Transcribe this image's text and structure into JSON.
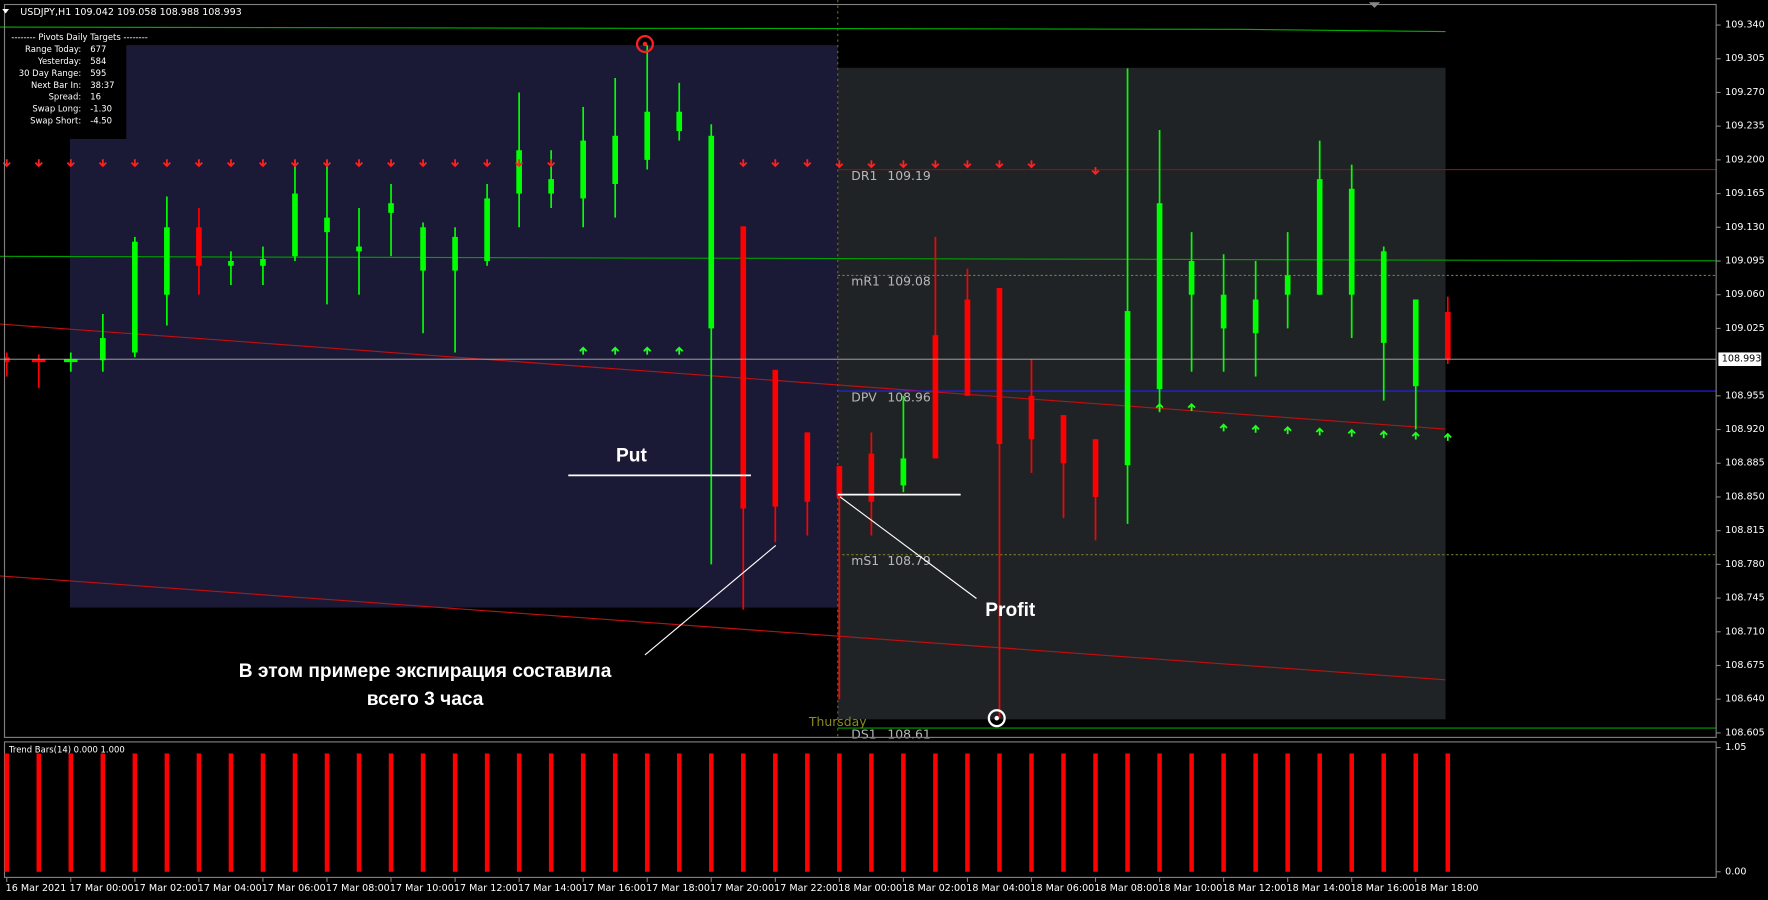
{
  "chart_data": [
    {
      "type": "candlestick",
      "title": "USDJPY,H1  109.042 109.058 108.988 108.993",
      "categories": [
        "16 Mar 2021",
        null,
        "17 Mar 00:00",
        null,
        "17 Mar 02:00",
        null,
        "17 Mar 04:00",
        null,
        "17 Mar 06:00",
        null,
        "17 Mar 08:00",
        null,
        "17 Mar 10:00",
        null,
        "17 Mar 12:00",
        null,
        "17 Mar 14:00",
        null,
        "17 Mar 16:00",
        null,
        "17 Mar 18:00",
        null,
        "17 Mar 20:00",
        null,
        "17 Mar 22:00",
        null,
        "18 Mar 00:00",
        null,
        "18 Mar 02:00",
        null,
        "18 Mar 04:00",
        null,
        "18 Mar 06:00",
        null,
        "18 Mar 08:00",
        null,
        "18 Mar 10:00",
        null,
        "18 Mar 12:00",
        null,
        "18 Mar 14:00",
        null,
        "18 Mar 16:00",
        null,
        "18 Mar 18:00",
        null
      ],
      "open": [
        108.995,
        108.993,
        108.99,
        108.992,
        109.0,
        109.06,
        109.13,
        109.09,
        109.09,
        109.1,
        109.125,
        109.105,
        109.145,
        109.085,
        109.085,
        109.095,
        109.165,
        109.165,
        109.16,
        109.175,
        109.2,
        109.23,
        109.025,
        109.131,
        108.982,
        108.917,
        108.882,
        108.895,
        108.862,
        109.018,
        109.055,
        109.067,
        108.955,
        108.935,
        108.91,
        108.883,
        108.962,
        109.06,
        109.025,
        109.02,
        109.06,
        109.06,
        109.06,
        109.01,
        108.965,
        109.042
      ],
      "high": [
        109.0,
        108.998,
        109.0,
        109.04,
        109.12,
        109.162,
        109.15,
        109.105,
        109.11,
        109.2,
        109.2,
        109.15,
        109.175,
        109.135,
        109.13,
        109.175,
        109.27,
        109.21,
        109.255,
        109.285,
        109.319,
        109.28,
        109.237,
        109.131,
        108.982,
        108.917,
        108.882,
        108.917,
        108.955,
        109.12,
        109.087,
        109.067,
        108.993,
        108.935,
        108.91,
        109.295,
        109.231,
        109.125,
        109.102,
        109.095,
        109.125,
        109.22,
        109.195,
        109.11,
        109.055,
        109.058
      ],
      "low": [
        108.975,
        108.963,
        108.98,
        108.98,
        108.995,
        109.028,
        109.06,
        109.07,
        109.07,
        109.095,
        109.05,
        109.06,
        109.1,
        109.02,
        109.0,
        109.09,
        109.13,
        109.15,
        109.13,
        109.14,
        109.19,
        109.22,
        108.78,
        108.733,
        108.803,
        108.81,
        108.64,
        108.81,
        108.855,
        108.89,
        108.955,
        108.62,
        108.875,
        108.828,
        108.805,
        108.822,
        108.938,
        108.98,
        108.98,
        108.975,
        109.025,
        109.06,
        109.015,
        108.95,
        108.92,
        108.988
      ],
      "close": [
        108.99,
        108.99,
        108.993,
        109.015,
        109.115,
        109.13,
        109.09,
        109.095,
        109.097,
        109.165,
        109.14,
        109.11,
        109.155,
        109.13,
        109.12,
        109.16,
        109.21,
        109.18,
        109.22,
        109.225,
        109.25,
        109.25,
        109.225,
        108.838,
        108.84,
        108.845,
        108.85,
        108.845,
        108.89,
        108.89,
        108.955,
        108.905,
        108.91,
        108.885,
        108.85,
        109.043,
        109.155,
        109.095,
        109.06,
        109.055,
        109.08,
        109.18,
        109.17,
        109.105,
        109.055,
        108.993
      ],
      "up_color": "#00ff00",
      "down_color": "#ff0000",
      "ylim": [
        108.598,
        109.366
      ],
      "yticks": [
        {
          "value": 109.34,
          "label": "109.340"
        },
        109.305,
        {
          "value": 109.27,
          "label": "109.270"
        },
        109.235,
        {
          "value": 109.2,
          "label": "109.200"
        },
        109.165,
        {
          "value": 109.13,
          "label": "109.130"
        },
        109.095,
        {
          "value": 109.06,
          "label": "109.060"
        },
        109.025,
        108.955,
        {
          "value": 108.92,
          "label": "108.920"
        },
        108.885,
        {
          "value": 108.85,
          "label": "108.850"
        },
        108.815,
        {
          "value": 108.78,
          "label": "108.780"
        },
        108.745,
        {
          "value": 108.71,
          "label": "108.710"
        },
        108.675,
        {
          "value": 108.64,
          "label": "108.640"
        },
        108.605
      ],
      "last_price": 108.993,
      "levels": [
        {
          "label": "DR1",
          "value": 109.19,
          "color": "#b00000"
        },
        {
          "label": "mR1",
          "value": 109.08,
          "color": "#7a7a30"
        },
        {
          "label": "DPV",
          "value": 108.96,
          "color": "#2020ff"
        },
        {
          "label": "mS1",
          "value": 108.79,
          "color": "#7a7a30"
        },
        {
          "label": "DS1",
          "value": 108.61,
          "color": "#00a000"
        }
      ],
      "info": {
        "heading": "-------- Pivots Daily Targets --------",
        "rows": [
          [
            "Range  Today:",
            "677"
          ],
          [
            "Yesterday:",
            "584"
          ],
          [
            "30 Day Range:",
            "595"
          ],
          [
            "Next Bar In:",
            "38:37"
          ],
          [
            "Spread:",
            "16"
          ],
          [
            "Swap  Long:",
            "-1.30"
          ],
          [
            "Swap  Short:",
            "-4.50"
          ]
        ]
      },
      "annotations": {
        "put": "Put",
        "profit": "Profit",
        "note": [
          "В этом примере экспирация составила",
          "всего 3 часа"
        ],
        "day": "Thursday"
      }
    },
    {
      "type": "bar",
      "title": "Trend Bars(14) 0.000 1.000",
      "values": [
        1,
        1,
        1,
        1,
        1,
        1,
        1,
        1,
        1,
        1,
        1,
        1,
        1,
        1,
        1,
        1,
        1,
        1,
        1,
        1,
        1,
        1,
        1,
        1,
        1,
        1,
        1,
        1,
        1,
        1,
        1,
        1,
        1,
        1,
        1,
        1,
        1,
        1,
        1,
        1,
        1,
        1,
        1,
        1,
        1,
        1
      ],
      "color": "#ff0000",
      "ylim": [
        0,
        1.05
      ],
      "yticks": [
        1.05,
        {
          "value": 0,
          "label": "0.00"
        }
      ]
    }
  ]
}
